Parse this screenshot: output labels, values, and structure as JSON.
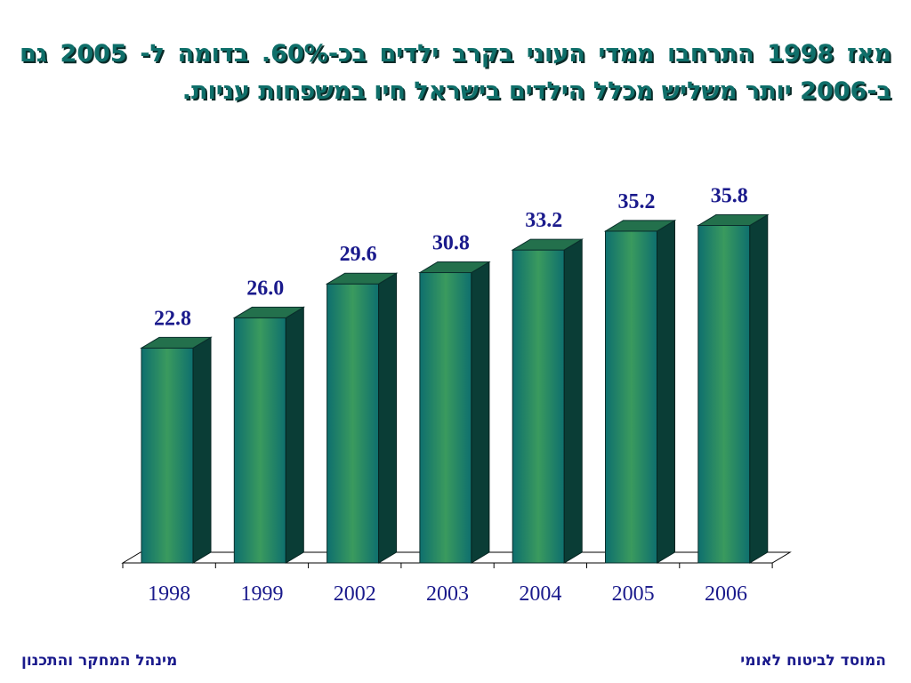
{
  "headline": "מאז 1998 התרחבו ממדי העוני בקרב ילדים בכ-60%. בדומה ל- 2005 גם ב-2006 יותר משליש מכלל הילדים בישראל חיו במשפחות עניות.",
  "footer": {
    "right": "המוסד לביטוח לאומי",
    "left": "מינהל המחקר והתכנון"
  },
  "colors": {
    "bar_front_edge": "#0e6f6e",
    "bar_front_center": "#3a9a5e",
    "bar_top": "#23704c",
    "bar_side": "#0a3d36",
    "labels": "#1a1a8c",
    "headline": "#0f6f6a"
  },
  "chart_data": {
    "type": "bar",
    "categories": [
      "1998",
      "1999",
      "2002",
      "2003",
      "2004",
      "2005",
      "2006"
    ],
    "values": [
      22.8,
      26.0,
      29.6,
      30.8,
      33.2,
      35.2,
      35.8
    ],
    "value_labels": [
      "22.8",
      "26.0",
      "29.6",
      "30.8",
      "33.2",
      "35.2",
      "35.8"
    ],
    "title": "",
    "xlabel": "",
    "ylabel": "",
    "ylim": [
      0,
      40
    ],
    "grid": false,
    "legend": "none",
    "style": "3d-columns"
  }
}
